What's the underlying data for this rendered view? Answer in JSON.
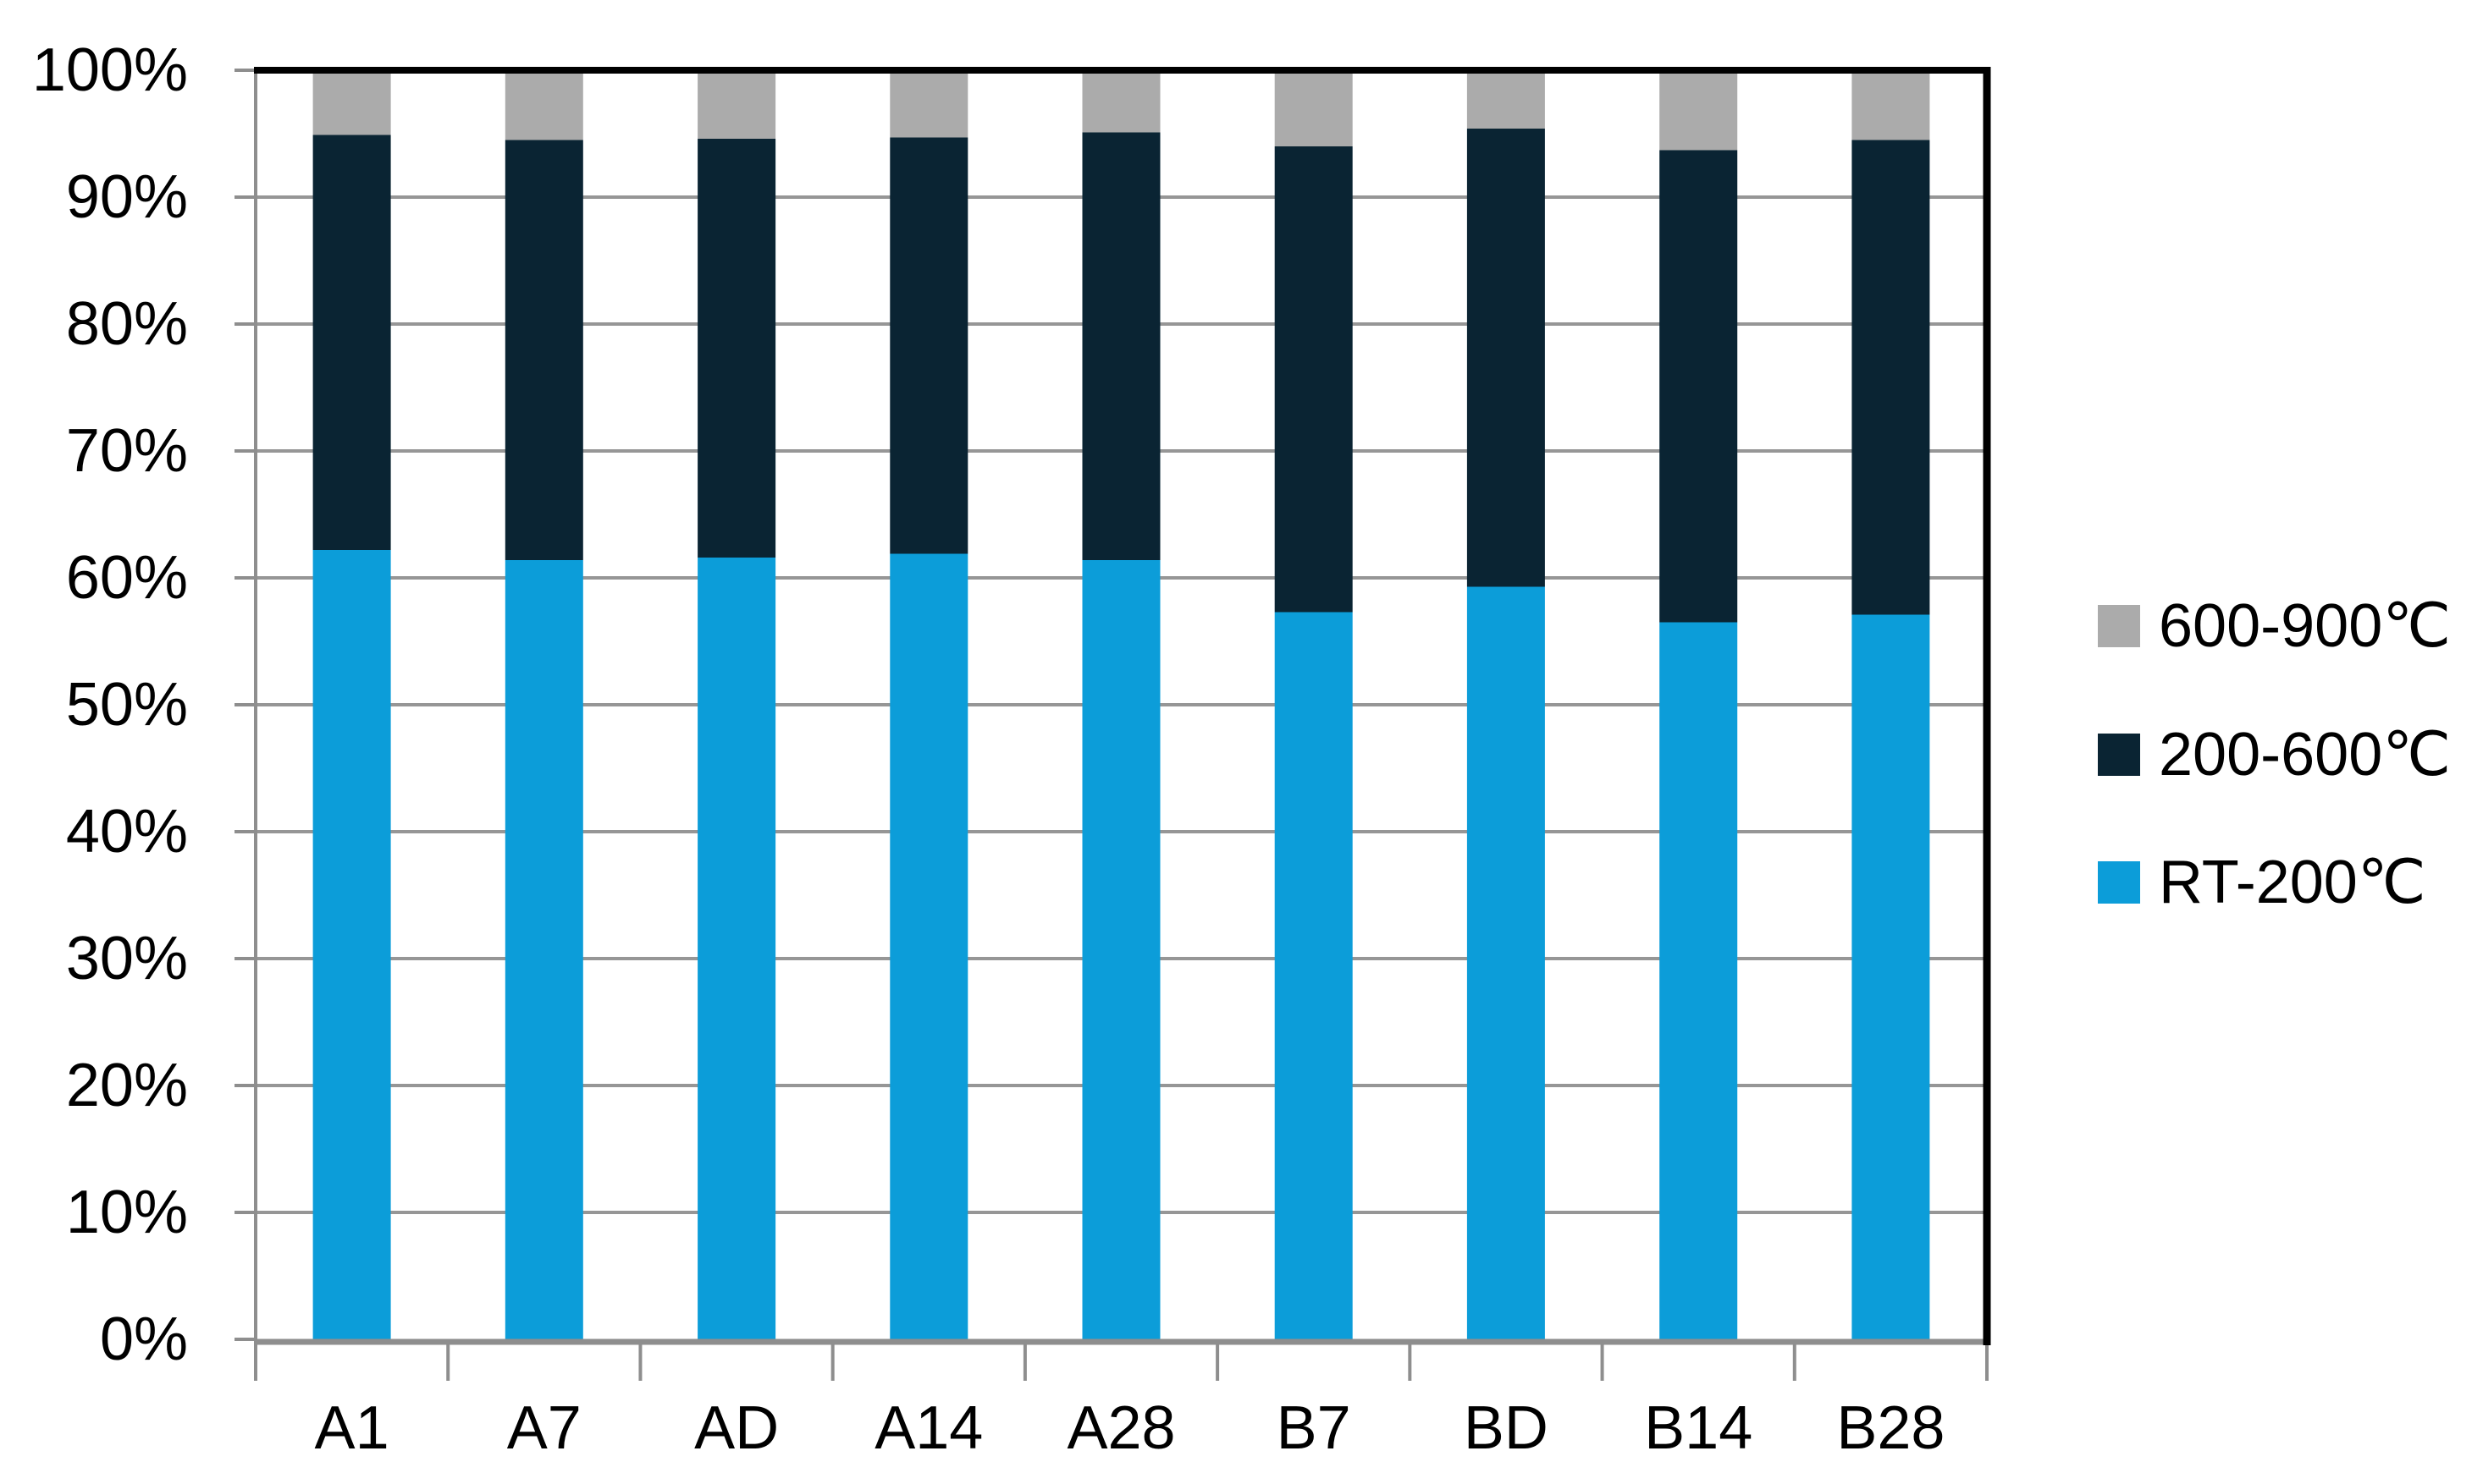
{
  "chart_data": {
    "type": "bar",
    "stacked": true,
    "percent_stacked": true,
    "title": "",
    "categories": [
      "A1",
      "A7",
      "AD",
      "A14",
      "A28",
      "B7",
      "BD",
      "B14",
      "B28"
    ],
    "series": [
      {
        "name": "RT-200℃",
        "color": "#0C9DD9",
        "values": [
          62.2,
          61.4,
          61.6,
          61.9,
          61.4,
          57.3,
          59.3,
          56.5,
          57.1
        ]
      },
      {
        "name": "200-600℃",
        "color": "#0A2433",
        "values": [
          32.7,
          33.1,
          33.0,
          32.8,
          33.7,
          36.7,
          36.1,
          37.2,
          37.4
        ]
      },
      {
        "name": "600-900℃",
        "color": "#ABABAB",
        "values": [
          5.1,
          5.5,
          5.4,
          5.3,
          4.9,
          6.0,
          4.6,
          6.3,
          5.5
        ]
      }
    ],
    "xlabel": "",
    "ylabel": "",
    "y_axis": {
      "min": 0,
      "max": 100,
      "step": 10,
      "tick_labels": [
        "0%",
        "10%",
        "20%",
        "30%",
        "40%",
        "50%",
        "60%",
        "70%",
        "80%",
        "90%",
        "100%"
      ]
    },
    "grid": true,
    "legend": {
      "position": "right",
      "items": [
        {
          "label": "600-900℃",
          "color": "#ABABAB"
        },
        {
          "label": "200-600℃",
          "color": "#0A2433"
        },
        {
          "label": "RT-200℃",
          "color": "#0C9DD9"
        }
      ]
    },
    "colors": {
      "gridline": "#969696",
      "axis": "#8E8E8E",
      "plot_border_top_right": "#000000",
      "background": "#FFFFFF",
      "text": "#000000"
    }
  }
}
